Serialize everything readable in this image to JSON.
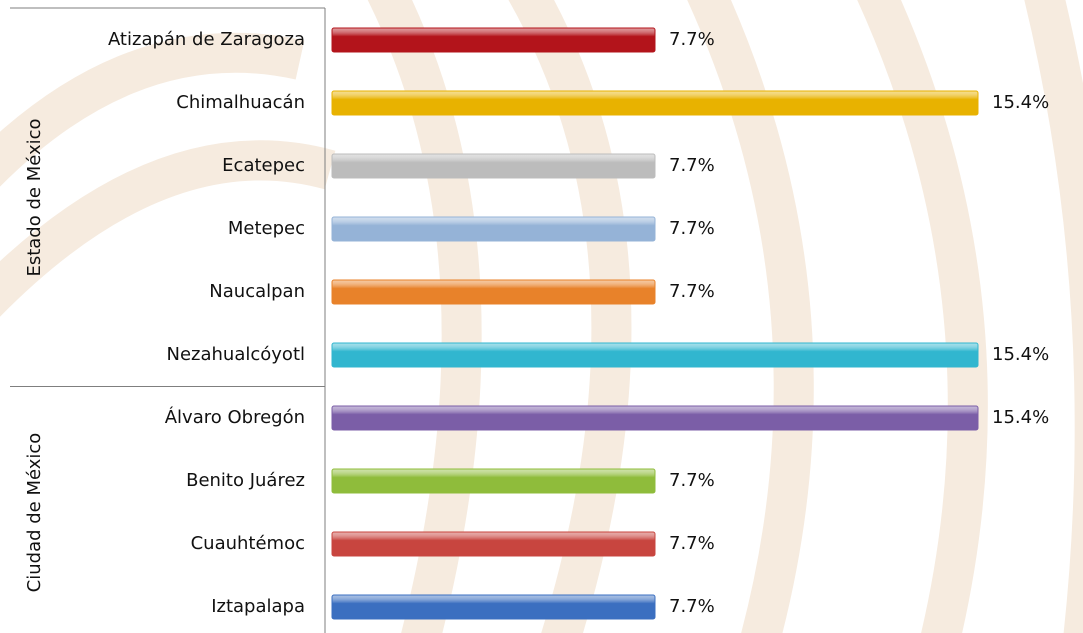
{
  "chart_data": {
    "type": "bar",
    "horizontal": true,
    "groups": [
      {
        "name": "Estado de México",
        "categories": [
          "Atizapán de Zaragoza",
          "Chimalhuacán",
          "Ecatepec",
          "Metepec",
          "Naucalpan",
          "Nezahualcóyotl"
        ],
        "values": [
          7.7,
          15.4,
          7.7,
          7.7,
          7.7,
          15.4
        ],
        "value_labels": [
          "7.7%",
          "15.4%",
          "7.7%",
          "7.7%",
          "7.7%",
          "15.4%"
        ],
        "colors": [
          "#b3141b",
          "#e8b200",
          "#bcbcbc",
          "#95b3d7",
          "#e8822a",
          "#31b6cf"
        ]
      },
      {
        "name": "Ciudad de México",
        "categories": [
          "Álvaro Obregón",
          "Benito Juárez",
          "Cuauhtémoc",
          "Iztapalapa"
        ],
        "values": [
          15.4,
          7.7,
          7.7,
          7.7
        ],
        "value_labels": [
          "15.4%",
          "7.7%",
          "7.7%",
          "7.7%"
        ],
        "colors": [
          "#7b5ea7",
          "#8fbc3b",
          "#c8453f",
          "#3b6fc0"
        ]
      }
    ]
  }
}
